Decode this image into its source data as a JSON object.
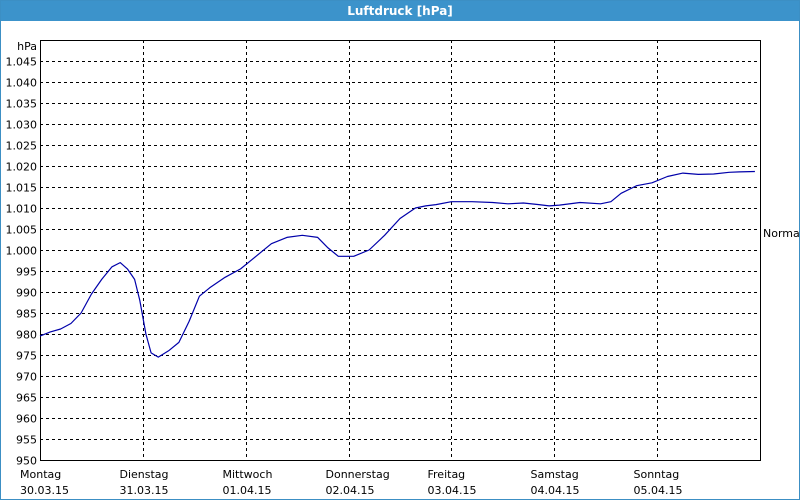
{
  "window": {
    "title": "Luftdruck [hPa]"
  },
  "colors": {
    "titlebar": "#3c93cb",
    "line": "#0000aa",
    "grid": "#000000"
  },
  "chart_data": {
    "type": "line",
    "title": "Luftdruck [hPa]",
    "ylabel": "hPa",
    "xlabel": "",
    "ylim": [
      950,
      1050
    ],
    "yticks": [
      950,
      955,
      960,
      965,
      970,
      975,
      980,
      985,
      990,
      995,
      1000,
      1005,
      1010,
      1015,
      1020,
      1025,
      1030,
      1035,
      1040,
      1045
    ],
    "ytick_labels": [
      "950",
      "955",
      "960",
      "965",
      "970",
      "975",
      "980",
      "985",
      "990",
      "995",
      "1.000",
      "1.005",
      "1.010",
      "1.015",
      "1.020",
      "1.025",
      "1.030",
      "1.035",
      "1.040",
      "1.045"
    ],
    "xlim": [
      0,
      7
    ],
    "x_unit": "days",
    "xticks": [
      {
        "day": "Montag",
        "date": "30.03.15"
      },
      {
        "day": "Dienstag",
        "date": "31.03.15"
      },
      {
        "day": "Mittwoch",
        "date": "01.04.15"
      },
      {
        "day": "Donnerstag",
        "date": "02.04.15"
      },
      {
        "day": "Freitag",
        "date": "03.04.15"
      },
      {
        "day": "Samstag",
        "date": "04.04.15"
      },
      {
        "day": "Sonntag",
        "date": "05.04.15"
      }
    ],
    "reference_line": {
      "label": "Normal",
      "value": 1004
    },
    "grid": true,
    "series": [
      {
        "values": [
          [
            0.0,
            979.5
          ],
          [
            0.1,
            980.5
          ],
          [
            0.2,
            981.2
          ],
          [
            0.3,
            982.5
          ],
          [
            0.4,
            985
          ],
          [
            0.5,
            989.5
          ],
          [
            0.6,
            993
          ],
          [
            0.7,
            996
          ],
          [
            0.78,
            997
          ],
          [
            0.85,
            995.5
          ],
          [
            0.92,
            993
          ],
          [
            0.97,
            988
          ],
          [
            1.03,
            980
          ],
          [
            1.08,
            975.5
          ],
          [
            1.15,
            974.5
          ],
          [
            1.25,
            976
          ],
          [
            1.35,
            978
          ],
          [
            1.45,
            983
          ],
          [
            1.55,
            989
          ],
          [
            1.65,
            991
          ],
          [
            1.8,
            993.5
          ],
          [
            1.95,
            995.5
          ],
          [
            2.1,
            998.5
          ],
          [
            2.25,
            1001.5
          ],
          [
            2.4,
            1003
          ],
          [
            2.55,
            1003.5
          ],
          [
            2.7,
            1003
          ],
          [
            2.8,
            1000.5
          ],
          [
            2.9,
            998.5
          ],
          [
            3.05,
            998.5
          ],
          [
            3.2,
            1000
          ],
          [
            3.35,
            1003.5
          ],
          [
            3.5,
            1007.5
          ],
          [
            3.65,
            1010
          ],
          [
            3.75,
            1010.5
          ],
          [
            3.85,
            1010.8
          ],
          [
            4.0,
            1011.5
          ],
          [
            4.2,
            1011.5
          ],
          [
            4.4,
            1011.3
          ],
          [
            4.55,
            1011
          ],
          [
            4.7,
            1011.2
          ],
          [
            4.85,
            1010.8
          ],
          [
            4.95,
            1010.5
          ],
          [
            5.05,
            1010.7
          ],
          [
            5.25,
            1011.3
          ],
          [
            5.45,
            1011
          ],
          [
            5.55,
            1011.5
          ],
          [
            5.65,
            1013.5
          ],
          [
            5.8,
            1015.3
          ],
          [
            5.95,
            1016
          ],
          [
            6.1,
            1017.5
          ],
          [
            6.25,
            1018.3
          ],
          [
            6.4,
            1018
          ],
          [
            6.55,
            1018.1
          ],
          [
            6.7,
            1018.5
          ],
          [
            6.8,
            1018.6
          ],
          [
            6.95,
            1018.7
          ]
        ]
      }
    ]
  }
}
